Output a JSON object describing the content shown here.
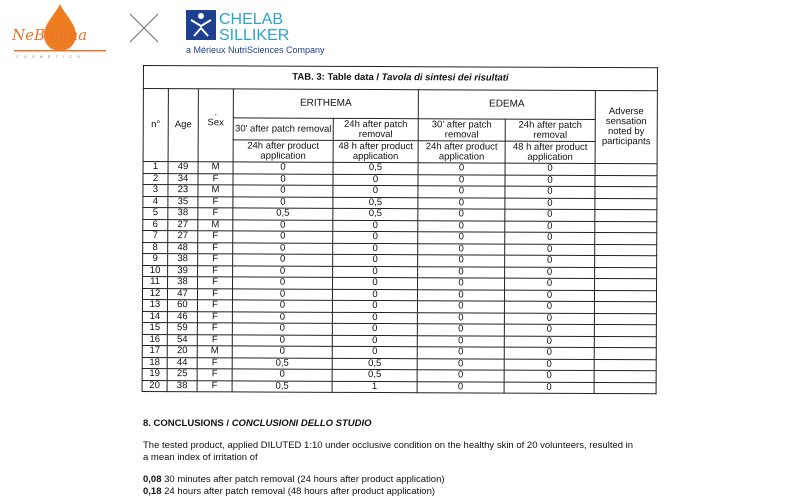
{
  "logos": {
    "left": "NeBiolina COSMETICS",
    "right_top": "CHELAB",
    "right_mid": "SILLIKER",
    "right_sub": "a Mérieux NutriSciences Company"
  },
  "table": {
    "title_bold": "TAB. 3: Table data / ",
    "title_italic": "Tavola di sintesi dei risultati",
    "headers": {
      "n": "n°",
      "age": "Age",
      "sex": "Sex",
      "sex_mark": ".",
      "erithema": "ERITHEMA",
      "edema": "EDEMA",
      "adverse": "Adverse sensation noted by participants",
      "e30": "30' after patch removal",
      "e24": "24h after patch removal",
      "e30b": "24h after product application",
      "e24b": "48 h after product application",
      "d30": "30' after patch removal",
      "d24": "24h after patch removal",
      "d30b": "24h after product application",
      "d24b": "48 h after product application"
    },
    "rows": [
      [
        "1",
        "49",
        "M",
        "0",
        "0,5",
        "0",
        "0"
      ],
      [
        "2",
        "34",
        "F",
        "0",
        "0",
        "0",
        "0"
      ],
      [
        "3",
        "23",
        "M",
        "0",
        "0",
        "0",
        "0"
      ],
      [
        "4",
        "35",
        "F",
        "0",
        "0,5",
        "0",
        "0"
      ],
      [
        "5",
        "38",
        "F",
        "0,5",
        "0,5",
        "0",
        "0"
      ],
      [
        "6",
        "27",
        "M",
        "0",
        "0",
        "0",
        "0"
      ],
      [
        "7",
        "27",
        "F",
        "0",
        "0",
        "0",
        "0"
      ],
      [
        "8",
        "48",
        "F",
        "0",
        "0",
        "0",
        "0"
      ],
      [
        "9",
        "38",
        "F",
        "0",
        "0",
        "0",
        "0"
      ],
      [
        "10",
        "39",
        "F",
        "0",
        "0",
        "0",
        "0"
      ],
      [
        "11",
        "38",
        "F",
        "0",
        "0",
        "0",
        "0"
      ],
      [
        "12",
        "47",
        "F",
        "0",
        "0",
        "0",
        "0"
      ],
      [
        "13",
        "60",
        "F",
        "0",
        "0",
        "0",
        "0"
      ],
      [
        "14",
        "46",
        "F",
        "0",
        "0",
        "0",
        "0"
      ],
      [
        "15",
        "59",
        "F",
        "0",
        "0",
        "0",
        "0"
      ],
      [
        "16",
        "54",
        "F",
        "0",
        "0",
        "0",
        "0"
      ],
      [
        "17",
        "20",
        "M",
        "0",
        "0",
        "0",
        "0"
      ],
      [
        "18",
        "44",
        "F",
        "0,5",
        "0,5",
        "0",
        "0"
      ],
      [
        "19",
        "25",
        "F",
        "0",
        "0,5",
        "0",
        "0"
      ],
      [
        "20",
        "38",
        "F",
        "0,5",
        "1",
        "0",
        "0"
      ]
    ]
  },
  "conclusions": {
    "heading_bold": "8.   CONCLUSIONS / ",
    "heading_italic": "CONCLUSIONI DELLO STUDIO",
    "line1": "The tested product, applied DILUTED 1:10 under occlusive condition on the healthy skin of 20 volunteers, resulted in",
    "line2": "a mean index of irritation of",
    "r1_value": "0,08",
    "r1_text": " 30 minutes after patch removal (24 hours after product application)",
    "r2_value": "0,18",
    "r2_text": " 24 hours after patch removal (48 hours after product application)"
  }
}
